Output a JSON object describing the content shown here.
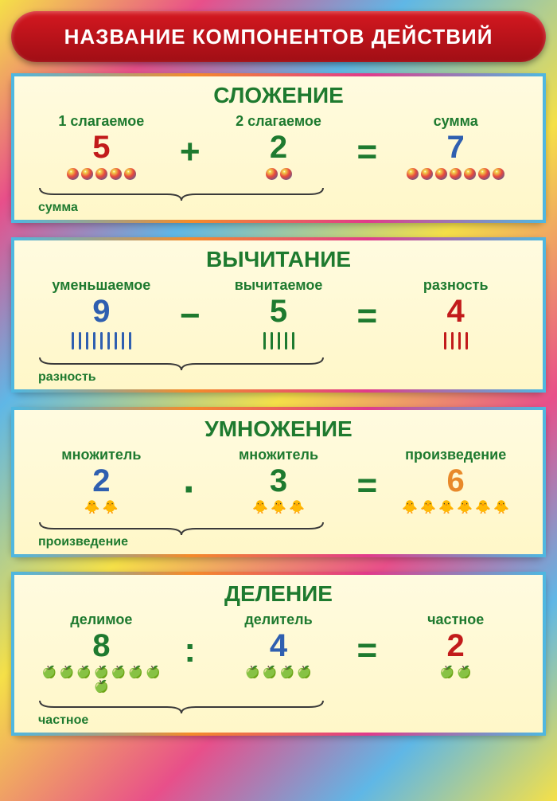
{
  "header": {
    "title": "НАЗВАНИЕ КОМПОНЕНТОВ ДЕЙСТВИЙ",
    "fontsize": 26,
    "bg_from": "#d51820",
    "bg_to": "#a00e15",
    "fg": "#ffffff"
  },
  "panels": {
    "add": {
      "title": "СЛОЖЕНИЕ",
      "title_color": "#1e7a2f",
      "title_size": 28,
      "a": {
        "label": "1 слагаемое",
        "value": "5",
        "color": "#c21b1b",
        "count": 5,
        "icon": "ball"
      },
      "op": {
        "symbol": "+",
        "color": "#1e7a2f",
        "size": 44
      },
      "b": {
        "label": "2 слагаемое",
        "value": "2",
        "color": "#1e7a2f",
        "count": 2,
        "icon": "ball"
      },
      "eq": {
        "symbol": "=",
        "color": "#1e7a2f",
        "size": 44
      },
      "r": {
        "label": "сумма",
        "value": "7",
        "color": "#2f5fb0",
        "count": 7,
        "icon": "ball"
      },
      "brace_label": "сумма",
      "brace_width": 360,
      "num_size": 40,
      "label_size": 18
    },
    "sub": {
      "title": "ВЫЧИТАНИЕ",
      "title_color": "#1e7a2f",
      "title_size": 28,
      "a": {
        "label": "уменьшаемое",
        "value": "9",
        "color": "#2f5fb0",
        "count": 9,
        "icon": "stick",
        "stick_color": "#2f5fb0"
      },
      "op": {
        "symbol": "−",
        "color": "#1e7a2f",
        "size": 44
      },
      "b": {
        "label": "вычитаемое",
        "value": "5",
        "color": "#1e7a2f",
        "count": 5,
        "icon": "stick",
        "stick_color": "#1e7a2f"
      },
      "eq": {
        "symbol": "=",
        "color": "#1e7a2f",
        "size": 44
      },
      "r": {
        "label": "разность",
        "value": "4",
        "color": "#c21b1b",
        "count": 4,
        "icon": "stick",
        "stick_color": "#c21b1b"
      },
      "brace_label": "разность",
      "brace_width": 360,
      "num_size": 40,
      "label_size": 18
    },
    "mul": {
      "title": "УМНОЖЕНИЕ",
      "title_color": "#1e7a2f",
      "title_size": 28,
      "a": {
        "label": "множитель",
        "value": "2",
        "color": "#2f5fb0",
        "count": 2,
        "icon": "duck"
      },
      "op": {
        "symbol": "·",
        "color": "#1e7a2f",
        "size": 52
      },
      "b": {
        "label": "множитель",
        "value": "3",
        "color": "#1e7a2f",
        "count": 3,
        "icon": "duck"
      },
      "eq": {
        "symbol": "=",
        "color": "#1e7a2f",
        "size": 44
      },
      "r": {
        "label": "произведение",
        "value": "6",
        "color": "#e8892a",
        "count": 6,
        "icon": "duck"
      },
      "brace_label": "произведение",
      "brace_width": 360,
      "num_size": 40,
      "label_size": 18
    },
    "div": {
      "title": "ДЕЛЕНИЕ",
      "title_color": "#1e7a2f",
      "title_size": 28,
      "a": {
        "label": "делимое",
        "value": "8",
        "color": "#1e7a2f",
        "count": 8,
        "icon": "apple"
      },
      "op": {
        "symbol": ":",
        "color": "#1e7a2f",
        "size": 44
      },
      "b": {
        "label": "делитель",
        "value": "4",
        "color": "#2f5fb0",
        "count": 4,
        "icon": "apple"
      },
      "eq": {
        "symbol": "=",
        "color": "#1e7a2f",
        "size": 44
      },
      "r": {
        "label": "частное",
        "value": "2",
        "color": "#c21b1b",
        "count": 2,
        "icon": "apple"
      },
      "brace_label": "частное",
      "brace_width": 360,
      "num_size": 40,
      "label_size": 18
    }
  },
  "brace_color": "#3a3a3a"
}
